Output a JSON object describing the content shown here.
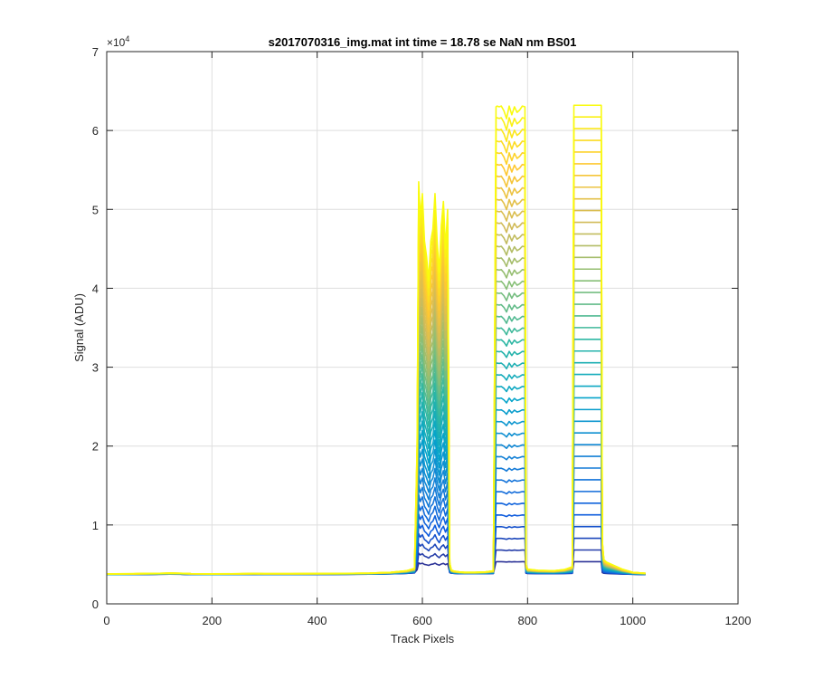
{
  "chart_data": {
    "type": "line",
    "title": "s2017070316_img.mat int time = 18.78 se  NaN nm BS01",
    "xlabel": "Track Pixels",
    "ylabel": "Signal (ADU)",
    "y_exponent_base": "×10",
    "y_exponent_power": "4",
    "xlim": [
      0,
      1200
    ],
    "ylim": [
      0,
      7
    ],
    "x_scale_factor": 1,
    "y_scale_factor": 10000,
    "grid": true,
    "x_ticks": [
      0,
      200,
      400,
      600,
      800,
      1000,
      1200
    ],
    "y_ticks": [
      0,
      1,
      2,
      3,
      4,
      5,
      6,
      7
    ],
    "x_tick_labels": [
      "0",
      "200",
      "400",
      "600",
      "800",
      "1000",
      "1200"
    ],
    "y_tick_labels": [
      "0",
      "1",
      "2",
      "3",
      "4",
      "5",
      "6",
      "7"
    ],
    "colormap": [
      "#352a87",
      "#0f5cdd",
      "#1481d6",
      "#06a4ca",
      "#2eb7a4",
      "#87bf77",
      "#d1bb59",
      "#fec832",
      "#f9fb0e"
    ],
    "envelope": {
      "x": [
        1,
        50,
        100,
        120,
        140,
        160,
        200,
        250,
        280,
        300,
        350,
        400,
        450,
        500,
        540,
        570,
        585,
        590,
        593,
        596,
        600,
        604,
        608,
        612,
        616,
        620,
        624,
        628,
        632,
        636,
        640,
        644,
        648,
        652,
        655,
        660,
        670,
        680,
        700,
        720,
        735,
        740,
        742,
        746,
        750,
        755,
        760,
        765,
        770,
        775,
        780,
        785,
        790,
        795,
        797,
        800,
        820,
        850,
        870,
        885,
        888,
        890,
        895,
        900,
        910,
        920,
        930,
        940,
        942,
        945,
        950,
        960,
        980,
        1000,
        1010,
        1020,
        1024
      ],
      "y_top": [
        3800,
        3820,
        3870,
        3900,
        3880,
        3830,
        3810,
        3820,
        3840,
        3830,
        3830,
        3840,
        3860,
        3900,
        4000,
        4200,
        4500,
        20000,
        53500,
        49000,
        52000,
        46000,
        44000,
        41000,
        46000,
        47500,
        52000,
        46000,
        42000,
        48000,
        51000,
        45000,
        50000,
        5200,
        4300,
        4150,
        4050,
        4000,
        4000,
        4050,
        4200,
        63000,
        63100,
        63000,
        63100,
        62500,
        61500,
        63100,
        62000,
        63000,
        62300,
        62600,
        63100,
        63000,
        5000,
        4400,
        4250,
        4200,
        4350,
        4700,
        63200,
        63200,
        63200,
        63200,
        63200,
        63200,
        63200,
        63200,
        8000,
        5600,
        5300,
        5000,
        4400,
        4000,
        3950,
        3900,
        3880
      ],
      "y_base": [
        3700,
        3720,
        3750,
        3760,
        3750,
        3720,
        3710,
        3720,
        3730,
        3720,
        3720,
        3730,
        3740,
        3760,
        3800,
        3850,
        3900,
        3920,
        3940,
        3950,
        3950,
        3950,
        3950,
        3950,
        3950,
        3950,
        3950,
        3950,
        3950,
        3950,
        3950,
        3950,
        3950,
        3920,
        3880,
        3850,
        3830,
        3820,
        3820,
        3830,
        3840,
        3850,
        3860,
        3860,
        3860,
        3860,
        3860,
        3860,
        3860,
        3860,
        3860,
        3860,
        3860,
        3860,
        3850,
        3830,
        3820,
        3820,
        3830,
        3840,
        3850,
        3860,
        3860,
        3860,
        3860,
        3860,
        3860,
        3860,
        3850,
        3830,
        3810,
        3790,
        3760,
        3740,
        3730,
        3720,
        3720
      ]
    },
    "num_traces": 40
  }
}
